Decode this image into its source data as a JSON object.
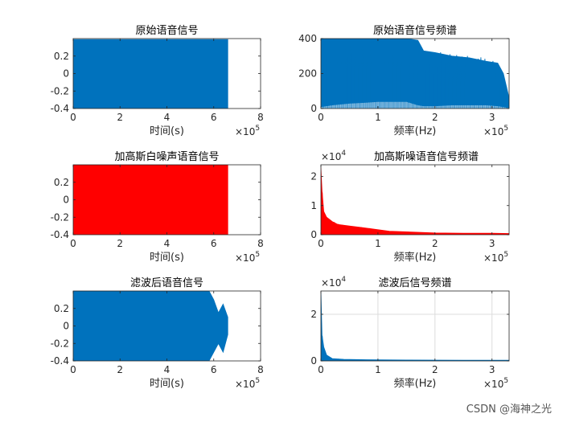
{
  "watermark": "CSDN @海神之光",
  "chart_data": [
    {
      "type": "area",
      "title": "原始语音信号",
      "xlabel": "时间(s)",
      "ylabel": "",
      "xlim": [
        0,
        8
      ],
      "ylim": [
        -0.4,
        0.4
      ],
      "xticks": [
        "0",
        "2",
        "4",
        "6",
        "8"
      ],
      "yticks": [
        "-0.4",
        "-0.2",
        "0",
        "0.2"
      ],
      "x_multiplier": "×10^5",
      "grid": false,
      "color": "#0072BD",
      "series": [
        {
          "x": [
            0,
            6.6
          ],
          "max": [
            0.39,
            0.39
          ],
          "min": [
            -0.4,
            -0.4
          ]
        }
      ]
    },
    {
      "type": "line",
      "title": "原始语音信号频谱",
      "xlabel": "频率(Hz)",
      "ylabel": "",
      "xlim": [
        0,
        3.3
      ],
      "ylim": [
        0,
        400
      ],
      "xticks": [
        "0",
        "1",
        "2",
        "3"
      ],
      "yticks": [
        "0",
        "200",
        "400"
      ],
      "x_multiplier": "×10^5",
      "grid": false,
      "color": "#0072BD",
      "series": [
        {
          "x": [
            0,
            0.2,
            0.5,
            0.8,
            1.0,
            1.3,
            1.5,
            1.7,
            1.8,
            2.0,
            2.3,
            2.6,
            2.9,
            3.1,
            3.2,
            3.3
          ],
          "max": [
            400,
            400,
            400,
            400,
            400,
            400,
            400,
            390,
            330,
            320,
            300,
            290,
            270,
            260,
            200,
            60
          ],
          "min": [
            10,
            20,
            30,
            35,
            40,
            40,
            40,
            20,
            15,
            15,
            20,
            20,
            20,
            15,
            10,
            5
          ]
        }
      ]
    },
    {
      "type": "area",
      "title": "加高斯白噪声语音信号",
      "xlabel": "时间(s)",
      "ylabel": "",
      "xlim": [
        0,
        8
      ],
      "ylim": [
        -0.4,
        0.4
      ],
      "xticks": [
        "0",
        "2",
        "4",
        "6",
        "8"
      ],
      "yticks": [
        "-0.4",
        "-0.2",
        "0",
        "0.2"
      ],
      "x_multiplier": "×10^5",
      "grid": false,
      "color": "#FF0000",
      "series": [
        {
          "x": [
            0,
            6.6
          ],
          "max": [
            0.4,
            0.4
          ],
          "min": [
            -0.4,
            -0.4
          ]
        }
      ]
    },
    {
      "type": "line",
      "title": "加高斯噪语音信号频谱",
      "xlabel": "频率(Hz)",
      "ylabel": "",
      "xlim": [
        0,
        3.3
      ],
      "ylim": [
        0,
        2.4
      ],
      "xticks": [
        "0",
        "1",
        "2",
        "3"
      ],
      "yticks": [
        "0",
        "1",
        "2"
      ],
      "x_multiplier": "×10^5",
      "y_multiplier": "×10^4",
      "grid": false,
      "color": "#FF0000",
      "series": [
        {
          "x": [
            0,
            0.02,
            0.05,
            0.1,
            0.2,
            0.3,
            0.5,
            0.7,
            0.9,
            1.2,
            1.5,
            2.0,
            2.5,
            3.0,
            3.3
          ],
          "max": [
            2.3,
            1.5,
            0.8,
            0.6,
            0.45,
            0.35,
            0.3,
            0.25,
            0.2,
            0.12,
            0.1,
            0.06,
            0.05,
            0.05,
            0.04
          ],
          "min": [
            0,
            0,
            0,
            0,
            0,
            0,
            0,
            0,
            0,
            0,
            0,
            0,
            0,
            0,
            0
          ]
        }
      ]
    },
    {
      "type": "area",
      "title": "滤波后语音信号",
      "xlabel": "时间(s)",
      "ylabel": "",
      "xlim": [
        0,
        8
      ],
      "ylim": [
        -0.4,
        0.4
      ],
      "xticks": [
        "0",
        "2",
        "4",
        "6",
        "8"
      ],
      "yticks": [
        "-0.4",
        "-0.2",
        "0",
        "0.2"
      ],
      "x_multiplier": "×10^5",
      "grid": false,
      "color": "#0072BD",
      "series": [
        {
          "x": [
            0,
            0.5,
            1.0,
            2.0,
            3.0,
            4.0,
            5.0,
            5.8,
            6.0,
            6.2,
            6.4,
            6.6
          ],
          "max": [
            0.4,
            0.4,
            0.4,
            0.4,
            0.4,
            0.4,
            0.4,
            0.4,
            0.3,
            0.15,
            0.25,
            0.1
          ],
          "min": [
            -0.4,
            -0.4,
            -0.4,
            -0.4,
            -0.4,
            -0.4,
            -0.4,
            -0.4,
            -0.3,
            -0.2,
            -0.3,
            -0.1
          ]
        }
      ]
    },
    {
      "type": "line",
      "title": "滤波后信号频谱",
      "xlabel": "频率(Hz)",
      "ylabel": "",
      "xlim": [
        0,
        3.3
      ],
      "ylim": [
        0,
        3
      ],
      "xticks": [
        "0",
        "1",
        "2",
        "3"
      ],
      "yticks": [
        "0",
        "2"
      ],
      "x_multiplier": "×10^5",
      "y_multiplier": "×10^4",
      "grid": true,
      "color": "#0072BD",
      "series": [
        {
          "x": [
            0,
            0.02,
            0.05,
            0.1,
            0.2,
            0.4,
            0.8,
            1.5,
            2.5,
            3.3
          ],
          "max": [
            3.0,
            1.1,
            0.6,
            0.25,
            0.1,
            0.07,
            0.05,
            0.04,
            0.03,
            0.03
          ],
          "min": [
            0,
            0,
            0,
            0,
            0,
            0,
            0,
            0,
            0,
            0
          ]
        }
      ]
    }
  ]
}
